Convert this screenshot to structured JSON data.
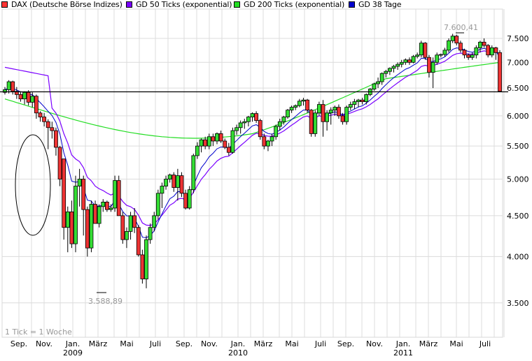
{
  "chart_data": {
    "type": "candlestick",
    "title": "",
    "legend": [
      {
        "label": "DAX (Deutsche Börse Indizes)",
        "color": "#ff3333"
      },
      {
        "label": "GD 50 Ticks (exponential)",
        "color": "#7a00ff"
      },
      {
        "label": "GD 200 Ticks (exponential)",
        "color": "#22dd22"
      },
      {
        "label": "GD 38 Tage",
        "color": "#0000cc"
      }
    ],
    "legend_position": "top",
    "xlabel": "",
    "ylabel": "",
    "yscale": "log",
    "ylim": [
      3300,
      7900
    ],
    "y_ticks": [
      7500,
      7000,
      6500,
      6000,
      5500,
      5000,
      4500,
      4000,
      3500
    ],
    "y_tick_labels": [
      "7.500",
      "7.000",
      "6.500",
      "6.000",
      "5.500",
      "5.000",
      "4.500",
      "4.000",
      "3.500"
    ],
    "x_ticks": [
      {
        "label": "Sep.",
        "year": ""
      },
      {
        "label": "Nov.",
        "year": ""
      },
      {
        "label": "Jan.",
        "year": "2009"
      },
      {
        "label": "März",
        "year": ""
      },
      {
        "label": "Mai",
        "year": ""
      },
      {
        "label": "Juli",
        "year": ""
      },
      {
        "label": "Sep.",
        "year": ""
      },
      {
        "label": "Nov.",
        "year": ""
      },
      {
        "label": "Jan.",
        "year": "2010"
      },
      {
        "label": "März",
        "year": ""
      },
      {
        "label": "Mai",
        "year": ""
      },
      {
        "label": "Juli",
        "year": ""
      },
      {
        "label": "Sep.",
        "year": ""
      },
      {
        "label": "Nov.",
        "year": ""
      },
      {
        "label": "Jan.",
        "year": "2011"
      },
      {
        "label": "März",
        "year": ""
      },
      {
        "label": "Mai",
        "year": ""
      },
      {
        "label": "Juli",
        "year": ""
      }
    ],
    "grid": true,
    "footnote": "1 Tick = 1 Woche",
    "annotations": [
      {
        "text": "7.600,41",
        "type": "high"
      },
      {
        "text": "3.588,89",
        "type": "low"
      }
    ],
    "horizontal_line": 6430,
    "candles": [
      [
        6420,
        6520,
        6380,
        6470
      ],
      [
        6470,
        6650,
        6400,
        6620
      ],
      [
        6620,
        6640,
        6380,
        6440
      ],
      [
        6440,
        6520,
        6300,
        6380
      ],
      [
        6380,
        6440,
        6250,
        6300
      ],
      [
        6300,
        6440,
        6200,
        6420
      ],
      [
        6420,
        6460,
        6180,
        6240
      ],
      [
        6240,
        6420,
        6150,
        6350
      ],
      [
        6350,
        6380,
        5950,
        6050
      ],
      [
        6050,
        6080,
        5900,
        5980
      ],
      [
        5980,
        6050,
        5820,
        5900
      ],
      [
        5900,
        5940,
        5450,
        5800
      ],
      [
        5800,
        5900,
        5620,
        5750
      ],
      [
        5750,
        5800,
        5350,
        5480
      ],
      [
        5480,
        5500,
        4900,
        5000
      ],
      [
        5300,
        5300,
        4200,
        4350
      ],
      [
        4350,
        4620,
        4050,
        4550
      ],
      [
        4550,
        4700,
        4100,
        4150
      ],
      [
        4150,
        5050,
        4050,
        4900
      ],
      [
        4900,
        5150,
        4620,
        5000
      ],
      [
        5000,
        5050,
        4250,
        4580
      ],
      [
        4580,
        4620,
        4000,
        4100
      ],
      [
        4100,
        4700,
        4050,
        4650
      ],
      [
        4650,
        4700,
        4400,
        4400
      ],
      [
        4400,
        4650,
        4350,
        4620
      ],
      [
        4620,
        4720,
        4550,
        4680
      ],
      [
        4680,
        4700,
        4550,
        4580
      ],
      [
        4580,
        4650,
        4550,
        4600
      ],
      [
        4600,
        5050,
        4550,
        4980
      ],
      [
        4980,
        5050,
        4500,
        4500
      ],
      [
        4500,
        4550,
        4150,
        4200
      ],
      [
        4200,
        4350,
        4100,
        4300
      ],
      [
        4300,
        4550,
        4200,
        4500
      ],
      [
        4500,
        4600,
        4280,
        4350
      ],
      [
        4350,
        4380,
        4000,
        4020
      ],
      [
        4020,
        4080,
        3700,
        3750
      ],
      [
        3750,
        4250,
        3650,
        4200
      ],
      [
        4200,
        4400,
        4150,
        4350
      ],
      [
        4350,
        4550,
        4300,
        4500
      ],
      [
        4500,
        4850,
        4450,
        4800
      ],
      [
        4800,
        4950,
        4600,
        4900
      ],
      [
        4900,
        5050,
        4850,
        5000
      ],
      [
        5000,
        5080,
        4950,
        5060
      ],
      [
        5060,
        5100,
        4820,
        4880
      ],
      [
        4880,
        5150,
        4700,
        5050
      ],
      [
        5050,
        5100,
        4750,
        4800
      ],
      [
        4800,
        4850,
        4580,
        4600
      ],
      [
        4600,
        4900,
        4580,
        4850
      ],
      [
        4850,
        5380,
        4800,
        5350
      ],
      [
        5350,
        5560,
        5300,
        5500
      ],
      [
        5500,
        5620,
        5400,
        5600
      ],
      [
        5600,
        5650,
        5450,
        5500
      ],
      [
        5500,
        5700,
        5450,
        5650
      ],
      [
        5650,
        5700,
        5500,
        5580
      ],
      [
        5580,
        5720,
        5530,
        5700
      ],
      [
        5700,
        5750,
        5550,
        5580
      ],
      [
        5580,
        5620,
        5450,
        5480
      ],
      [
        5480,
        5550,
        5350,
        5400
      ],
      [
        5400,
        5800,
        5380,
        5750
      ],
      [
        5750,
        5850,
        5680,
        5800
      ],
      [
        5800,
        5920,
        5700,
        5880
      ],
      [
        5880,
        5950,
        5780,
        5900
      ],
      [
        5900,
        6000,
        5820,
        5980
      ],
      [
        5980,
        6060,
        5900,
        6040
      ],
      [
        6040,
        6080,
        5880,
        5920
      ],
      [
        5920,
        5950,
        5600,
        5650
      ],
      [
        5650,
        5700,
        5450,
        5500
      ],
      [
        5500,
        5600,
        5420,
        5580
      ],
      [
        5580,
        5700,
        5500,
        5650
      ],
      [
        5650,
        5850,
        5600,
        5820
      ],
      [
        5820,
        5950,
        5750,
        5900
      ],
      [
        5900,
        6000,
        5850,
        5980
      ],
      [
        5980,
        6120,
        5950,
        6100
      ],
      [
        6100,
        6180,
        6050,
        6150
      ],
      [
        6150,
        6200,
        6100,
        6180
      ],
      [
        6180,
        6300,
        6150,
        6260
      ],
      [
        6260,
        6320,
        6180,
        6280
      ],
      [
        6280,
        6300,
        6050,
        6100
      ],
      [
        6100,
        6120,
        5650,
        5700
      ],
      [
        5700,
        6100,
        5650,
        6050
      ],
      [
        6050,
        6250,
        6000,
        6200
      ],
      [
        6200,
        6280,
        5650,
        5900
      ],
      [
        5900,
        6100,
        5750,
        6050
      ],
      [
        6050,
        6150,
        5850,
        6100
      ],
      [
        6100,
        6180,
        6000,
        6150
      ],
      [
        6150,
        6200,
        5950,
        6000
      ],
      [
        6000,
        6050,
        5850,
        5900
      ],
      [
        5900,
        6180,
        5850,
        6150
      ],
      [
        6150,
        6250,
        6100,
        6200
      ],
      [
        6200,
        6300,
        6120,
        6250
      ],
      [
        6250,
        6300,
        6150,
        6280
      ],
      [
        6280,
        6320,
        6200,
        6250
      ],
      [
        6250,
        6400,
        6200,
        6380
      ],
      [
        6380,
        6500,
        6350,
        6480
      ],
      [
        6480,
        6600,
        6450,
        6580
      ],
      [
        6580,
        6700,
        6500,
        6620
      ],
      [
        6620,
        6800,
        6560,
        6780
      ],
      [
        6780,
        6850,
        6700,
        6820
      ],
      [
        6820,
        6900,
        6750,
        6880
      ],
      [
        6880,
        6950,
        6800,
        6920
      ],
      [
        6920,
        7000,
        6850,
        6960
      ],
      [
        6960,
        7050,
        6900,
        7000
      ],
      [
        7000,
        7080,
        6950,
        7050
      ],
      [
        7050,
        7100,
        6950,
        7000
      ],
      [
        7000,
        7150,
        6980,
        7120
      ],
      [
        7120,
        7200,
        7080,
        7150
      ],
      [
        7150,
        7450,
        7100,
        7400
      ],
      [
        7400,
        7420,
        7050,
        7100
      ],
      [
        7100,
        7150,
        6700,
        6800
      ],
      [
        6800,
        7100,
        6500,
        7000
      ],
      [
        7000,
        7200,
        6950,
        7150
      ],
      [
        7150,
        7180,
        7100,
        7160
      ],
      [
        7160,
        7300,
        7120,
        7250
      ],
      [
        7250,
        7500,
        7200,
        7450
      ],
      [
        7450,
        7600,
        7400,
        7550
      ],
      [
        7550,
        7580,
        7350,
        7400
      ],
      [
        7400,
        7450,
        7200,
        7250
      ],
      [
        7250,
        7280,
        7080,
        7150
      ],
      [
        7150,
        7180,
        7050,
        7100
      ],
      [
        7100,
        7200,
        7050,
        7150
      ],
      [
        7150,
        7350,
        7080,
        7300
      ],
      [
        7300,
        7450,
        7200,
        7420
      ],
      [
        7420,
        7500,
        7300,
        7350
      ],
      [
        7350,
        7380,
        7100,
        7150
      ],
      [
        7150,
        7350,
        7100,
        7300
      ],
      [
        7300,
        7320,
        7050,
        7200
      ],
      [
        7200,
        7250,
        6430,
        6440
      ]
    ]
  }
}
